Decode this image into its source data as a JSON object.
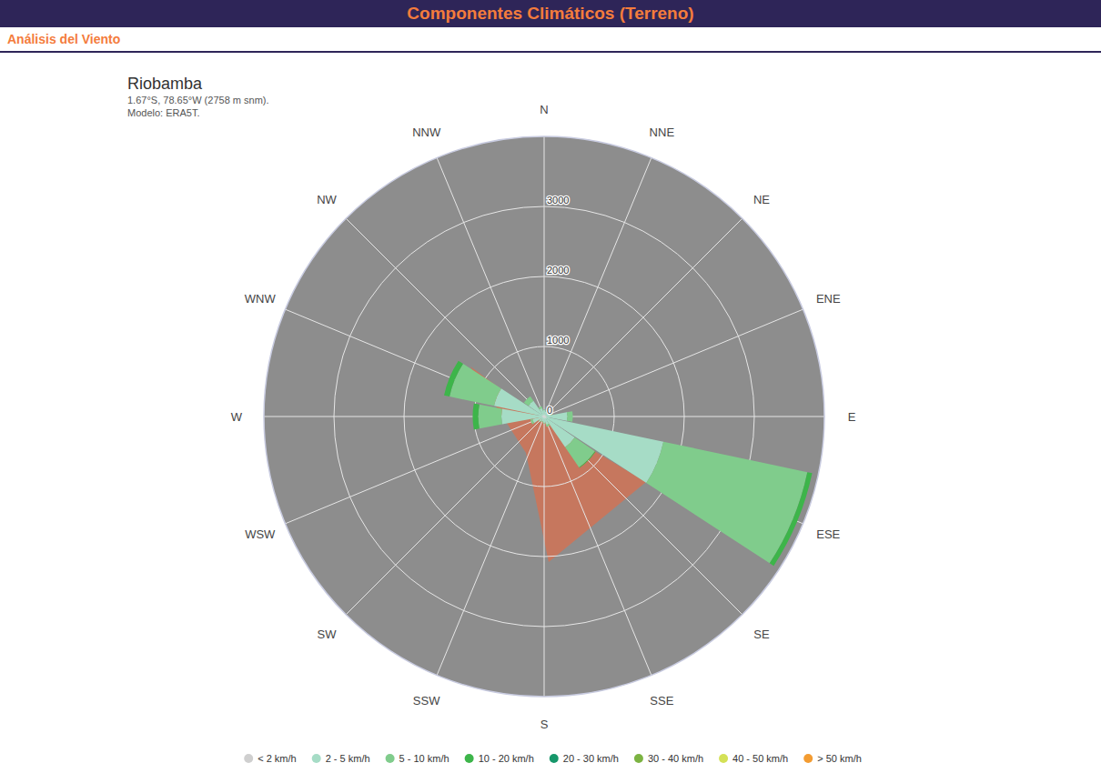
{
  "header": {
    "title": "Componentes Climáticos (Terreno)",
    "section": "Análisis del Viento"
  },
  "chart_data": {
    "type": "wind_rose",
    "title": "Riobamba",
    "subtitle": "1.67°S, 78.65°W (2758 m snm).",
    "annotations": [
      "Modelo: ERA5T."
    ],
    "categories": [
      "N",
      "NNE",
      "NE",
      "ENE",
      "E",
      "ESE",
      "SE",
      "SSE",
      "S",
      "SSW",
      "SW",
      "WSW",
      "W",
      "WNW",
      "NW",
      "NNW"
    ],
    "series": [
      {
        "name": "< 2 km/h",
        "color": "#cfcfcf",
        "values": [
          20,
          20,
          20,
          20,
          30,
          40,
          30,
          20,
          20,
          20,
          20,
          20,
          30,
          30,
          20,
          20
        ]
      },
      {
        "name": "2 - 5 km/h",
        "color": "#a6dcc6",
        "values": [
          70,
          50,
          50,
          80,
          300,
          1700,
          500,
          100,
          70,
          50,
          70,
          150,
          580,
          700,
          250,
          100
        ]
      },
      {
        "name": "5 - 10 km/h",
        "color": "#80cc8c",
        "values": [
          10,
          10,
          10,
          20,
          80,
          2100,
          350,
          30,
          10,
          10,
          10,
          30,
          330,
          650,
          80,
          30
        ]
      },
      {
        "name": "10 - 20 km/h",
        "color": "#3db54a",
        "values": [
          0,
          0,
          0,
          0,
          0,
          70,
          10,
          0,
          0,
          0,
          0,
          0,
          80,
          80,
          0,
          0
        ]
      },
      {
        "name": "20 - 30 km/h",
        "color": "#16976a",
        "values": [
          0,
          0,
          0,
          0,
          0,
          0,
          0,
          0,
          0,
          0,
          0,
          0,
          0,
          0,
          0,
          0
        ]
      },
      {
        "name": "30 - 40 km/h",
        "color": "#7cb342",
        "values": [
          0,
          0,
          0,
          0,
          0,
          0,
          0,
          0,
          0,
          0,
          0,
          0,
          0,
          0,
          0,
          0
        ]
      },
      {
        "name": "40 - 50 km/h",
        "color": "#d4e157",
        "values": [
          0,
          0,
          0,
          0,
          0,
          0,
          0,
          0,
          0,
          0,
          0,
          0,
          0,
          0,
          0,
          0
        ]
      },
      {
        "name": "> 50 km/h",
        "color": "#f39c32",
        "values": [
          0,
          0,
          0,
          0,
          0,
          0,
          0,
          0,
          0,
          0,
          0,
          0,
          0,
          0,
          0,
          0
        ]
      }
    ],
    "stacked": true,
    "ylim": [
      0,
      4000
    ],
    "yticks": [
      0,
      1000,
      2000,
      3000
    ],
    "grid": true,
    "legend": "bottom"
  }
}
